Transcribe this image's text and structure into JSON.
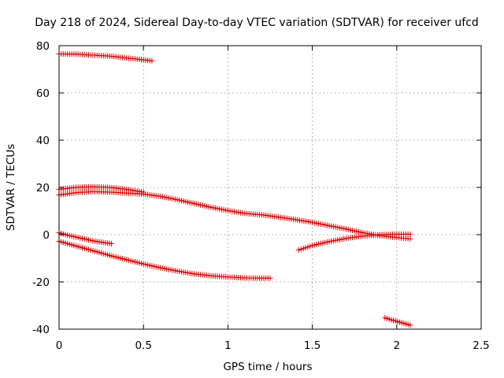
{
  "chart_data": {
    "type": "scatter",
    "title": "Day 218 of 2024, Sidereal Day-to-day VTEC variation (SDTVAR) for receiver ufcd",
    "xlabel": "GPS time / hours",
    "ylabel": "SDTVAR / TECUs",
    "xlim": [
      0,
      2.5
    ],
    "ylim": [
      -40,
      80
    ],
    "xticks": [
      0,
      0.5,
      1,
      1.5,
      2,
      2.5
    ],
    "xtick_labels": [
      "0",
      "0.5",
      "1",
      "1.5",
      "2",
      "2.5"
    ],
    "yticks": [
      -40,
      -20,
      0,
      20,
      40,
      60,
      80
    ],
    "ytick_labels": [
      "-40",
      "-20",
      "0",
      "20",
      "40",
      "60",
      "80"
    ],
    "grid": true,
    "marker": "plus",
    "color": "#e00000",
    "series": [
      {
        "name": "track-1",
        "x": [
          0.0,
          0.1,
          0.2,
          0.3,
          0.4,
          0.5,
          0.55
        ],
        "y": [
          76.5,
          76.4,
          76.0,
          75.6,
          74.8,
          74.0,
          73.6
        ]
      },
      {
        "name": "track-2",
        "x": [
          0.0,
          0.1,
          0.2,
          0.3,
          0.4,
          0.5
        ],
        "y": [
          19.2,
          20.0,
          20.3,
          20.0,
          19.2,
          18.0
        ]
      },
      {
        "name": "track-3",
        "x": [
          0.0,
          0.1,
          0.2,
          0.3,
          0.4,
          0.5,
          0.6,
          0.7,
          0.8,
          0.9,
          1.0,
          1.1,
          1.2,
          1.3,
          1.4,
          1.5,
          1.6,
          1.7,
          1.8,
          1.9,
          2.0,
          2.08
        ],
        "y": [
          16.8,
          17.8,
          18.2,
          18.0,
          17.6,
          17.2,
          16.2,
          14.8,
          13.2,
          11.6,
          10.2,
          9.0,
          8.4,
          7.4,
          6.4,
          5.2,
          3.8,
          2.4,
          0.8,
          -0.4,
          -1.2,
          -1.8
        ]
      },
      {
        "name": "track-4",
        "x": [
          0.0,
          0.05,
          0.1,
          0.15,
          0.2,
          0.25,
          0.31
        ],
        "y": [
          0.8,
          -0.2,
          -1.0,
          -1.8,
          -2.6,
          -3.2,
          -3.8
        ]
      },
      {
        "name": "track-5",
        "x": [
          0.0,
          0.1,
          0.2,
          0.3,
          0.4,
          0.5,
          0.6,
          0.7,
          0.8,
          0.9,
          1.0,
          1.1,
          1.2,
          1.25
        ],
        "y": [
          -2.8,
          -4.8,
          -6.8,
          -8.8,
          -10.6,
          -12.4,
          -14.0,
          -15.4,
          -16.6,
          -17.4,
          -17.9,
          -18.3,
          -18.4,
          -18.4
        ]
      },
      {
        "name": "track-6",
        "x": [
          1.42,
          1.5,
          1.6,
          1.7,
          1.8,
          1.9,
          2.0,
          2.08
        ],
        "y": [
          -6.5,
          -4.6,
          -2.9,
          -1.6,
          -0.6,
          0.0,
          0.2,
          0.2
        ]
      },
      {
        "name": "track-7",
        "x": [
          1.93,
          1.98,
          2.03,
          2.08
        ],
        "y": [
          -35.2,
          -36.3,
          -37.3,
          -38.3
        ]
      }
    ]
  }
}
